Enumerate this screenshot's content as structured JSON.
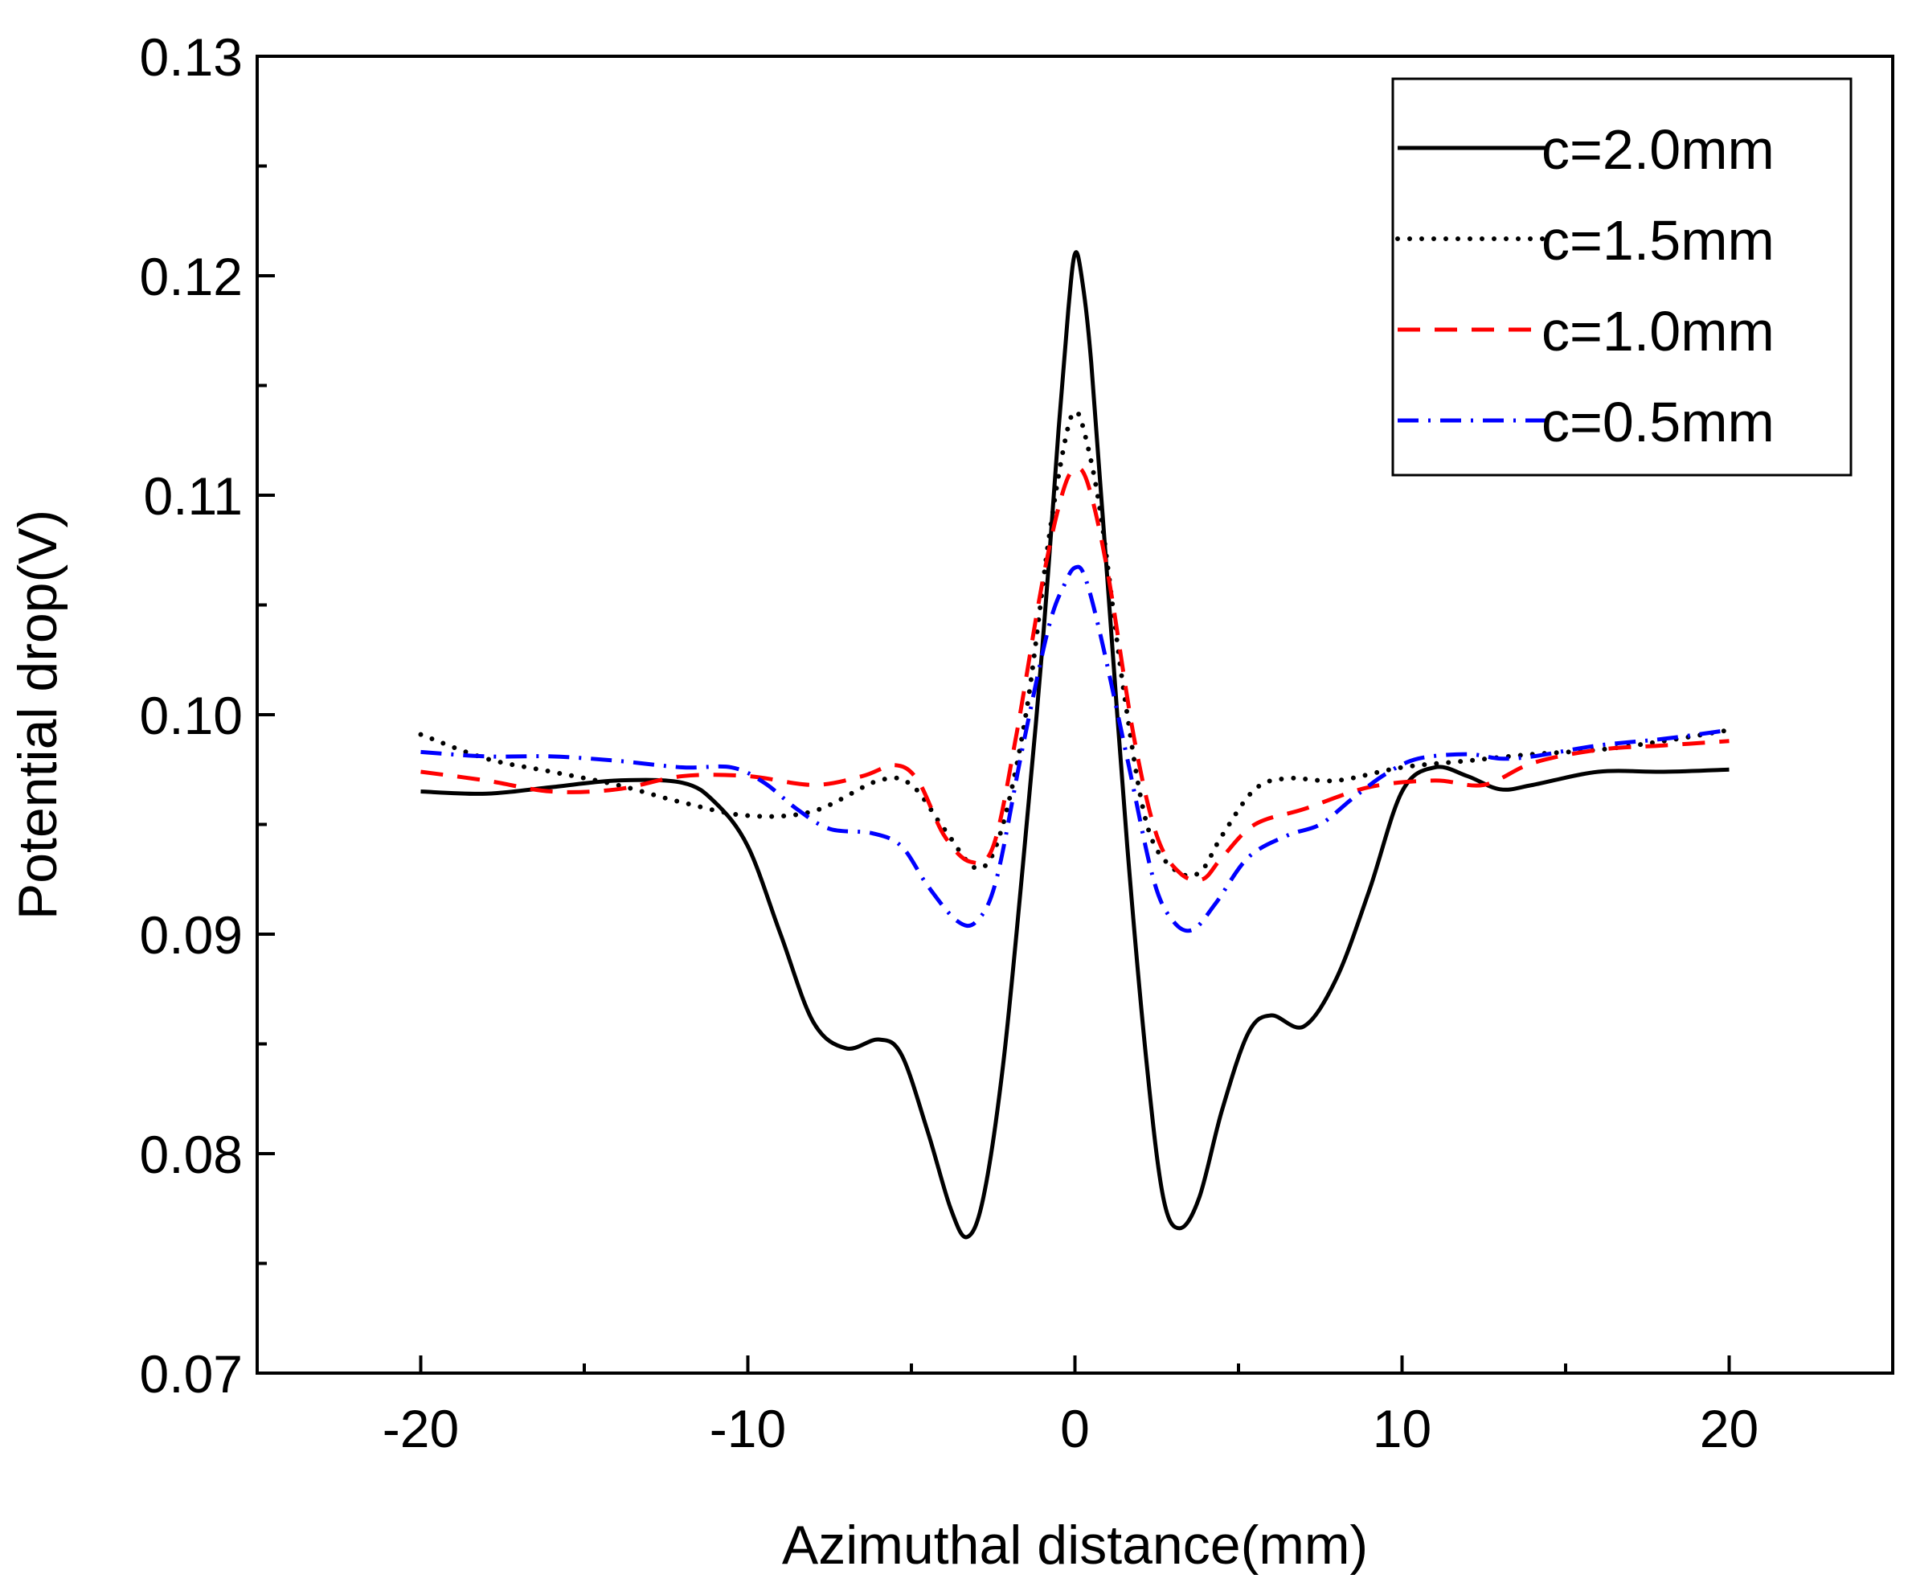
{
  "chart_data": {
    "type": "line",
    "title": "",
    "xlabel": "Azimuthal distance(mm)",
    "ylabel": "Potential drop(V)",
    "xlim": [
      -25,
      25
    ],
    "ylim": [
      0.07,
      0.13
    ],
    "x_ticks": [
      -20,
      -10,
      0,
      10,
      20
    ],
    "x_tick_labels": [
      "-20",
      "-10",
      "0",
      "10",
      "20"
    ],
    "y_ticks": [
      0.07,
      0.08,
      0.09,
      0.1,
      0.11,
      0.12,
      0.13
    ],
    "y_tick_labels": [
      "0.07",
      "0.08",
      "0.09",
      "0.10",
      "0.11",
      "0.12",
      "0.13"
    ],
    "grid": false,
    "legend_position": "top-right",
    "series": [
      {
        "name": "c=2.0mm",
        "color": "#000000",
        "line_style": "solid",
        "points": [
          [
            -20,
            0.0965
          ],
          [
            -18,
            0.0964
          ],
          [
            -16,
            0.0967
          ],
          [
            -14,
            0.097
          ],
          [
            -12,
            0.0969
          ],
          [
            -11,
            0.096
          ],
          [
            -10,
            0.094
          ],
          [
            -9,
            0.09
          ],
          [
            -8,
            0.086
          ],
          [
            -7,
            0.0848
          ],
          [
            -6,
            0.0852
          ],
          [
            -5.3,
            0.0845
          ],
          [
            -4.5,
            0.081
          ],
          [
            -3.8,
            0.0775
          ],
          [
            -3.3,
            0.0762
          ],
          [
            -2.8,
            0.078
          ],
          [
            -2.2,
            0.084
          ],
          [
            -1.6,
            0.093
          ],
          [
            -1.0,
            0.103
          ],
          [
            -0.5,
            0.113
          ],
          [
            -0.2,
            0.1185
          ],
          [
            0,
            0.121
          ],
          [
            0.2,
            0.12
          ],
          [
            0.5,
            0.116
          ],
          [
            1.0,
            0.106
          ],
          [
            1.6,
            0.094
          ],
          [
            2.2,
            0.084
          ],
          [
            2.7,
            0.078
          ],
          [
            3.2,
            0.0766
          ],
          [
            3.8,
            0.078
          ],
          [
            4.5,
            0.082
          ],
          [
            5.3,
            0.0855
          ],
          [
            6,
            0.0863
          ],
          [
            7,
            0.0858
          ],
          [
            8,
            0.088
          ],
          [
            9,
            0.092
          ],
          [
            10,
            0.0965
          ],
          [
            11,
            0.0976
          ],
          [
            12,
            0.0972
          ],
          [
            13,
            0.0966
          ],
          [
            14,
            0.0968
          ],
          [
            16,
            0.0974
          ],
          [
            18,
            0.0974
          ],
          [
            20,
            0.0975
          ]
        ]
      },
      {
        "name": "c=1.5mm",
        "color": "#000000",
        "line_style": "dotted",
        "points": [
          [
            -20,
            0.0991
          ],
          [
            -18,
            0.098
          ],
          [
            -16,
            0.0974
          ],
          [
            -14,
            0.0968
          ],
          [
            -12,
            0.096
          ],
          [
            -10,
            0.0954
          ],
          [
            -8,
            0.0956
          ],
          [
            -6,
            0.097
          ],
          [
            -5,
            0.0968
          ],
          [
            -4,
            0.0948
          ],
          [
            -3,
            0.093
          ],
          [
            -2.3,
            0.0945
          ],
          [
            -1.5,
            0.1
          ],
          [
            -0.8,
            0.108
          ],
          [
            -0.3,
            0.1125
          ],
          [
            0,
            0.1138
          ],
          [
            0.3,
            0.1128
          ],
          [
            0.8,
            0.109
          ],
          [
            1.5,
            0.101
          ],
          [
            2.2,
            0.095
          ],
          [
            3,
            0.093
          ],
          [
            3.8,
            0.0928
          ],
          [
            4.5,
            0.0945
          ],
          [
            5.5,
            0.0966
          ],
          [
            6.5,
            0.0971
          ],
          [
            8,
            0.097
          ],
          [
            10,
            0.0976
          ],
          [
            12,
            0.0979
          ],
          [
            14,
            0.0982
          ],
          [
            16,
            0.0984
          ],
          [
            18,
            0.0988
          ],
          [
            20,
            0.0993
          ]
        ]
      },
      {
        "name": "c=1.0mm",
        "color": "#ff0000",
        "line_style": "dashed",
        "points": [
          [
            -20,
            0.0974
          ],
          [
            -18,
            0.097
          ],
          [
            -16,
            0.0965
          ],
          [
            -14,
            0.0966
          ],
          [
            -12,
            0.0972
          ],
          [
            -10,
            0.0972
          ],
          [
            -8,
            0.0968
          ],
          [
            -6.5,
            0.0972
          ],
          [
            -5.5,
            0.0977
          ],
          [
            -4.8,
            0.097
          ],
          [
            -4,
            0.0945
          ],
          [
            -3.2,
            0.0933
          ],
          [
            -2.5,
            0.094
          ],
          [
            -1.8,
            0.099
          ],
          [
            -1.0,
            0.106
          ],
          [
            -0.4,
            0.11
          ],
          [
            0,
            0.1112
          ],
          [
            0.4,
            0.1105
          ],
          [
            1.0,
            0.1065
          ],
          [
            1.8,
            0.099
          ],
          [
            2.5,
            0.0945
          ],
          [
            3.2,
            0.0928
          ],
          [
            3.9,
            0.0925
          ],
          [
            4.5,
            0.0935
          ],
          [
            5.5,
            0.095
          ],
          [
            7,
            0.0957
          ],
          [
            9,
            0.0967
          ],
          [
            11,
            0.097
          ],
          [
            12.5,
            0.0968
          ],
          [
            14,
            0.0978
          ],
          [
            16,
            0.0984
          ],
          [
            18,
            0.0986
          ],
          [
            20,
            0.0988
          ]
        ]
      },
      {
        "name": "c=0.5mm",
        "color": "#0000ff",
        "line_style": "dashdot",
        "points": [
          [
            -20,
            0.0983
          ],
          [
            -18,
            0.0981
          ],
          [
            -16,
            0.0981
          ],
          [
            -14,
            0.0979
          ],
          [
            -12,
            0.0976
          ],
          [
            -10.5,
            0.0976
          ],
          [
            -9.5,
            0.0969
          ],
          [
            -8.5,
            0.0957
          ],
          [
            -7.5,
            0.0948
          ],
          [
            -6.2,
            0.0946
          ],
          [
            -5.3,
            0.094
          ],
          [
            -4.5,
            0.0922
          ],
          [
            -3.6,
            0.0906
          ],
          [
            -3.0,
            0.0906
          ],
          [
            -2.4,
            0.0925
          ],
          [
            -1.6,
            0.0985
          ],
          [
            -0.8,
            0.104
          ],
          [
            -0.3,
            0.106
          ],
          [
            0,
            0.1067
          ],
          [
            0.3,
            0.1063
          ],
          [
            0.8,
            0.1035
          ],
          [
            1.6,
            0.098
          ],
          [
            2.4,
            0.0925
          ],
          [
            3.0,
            0.0906
          ],
          [
            3.6,
            0.0902
          ],
          [
            4.3,
            0.0914
          ],
          [
            5.3,
            0.0935
          ],
          [
            6.5,
            0.0945
          ],
          [
            7.5,
            0.095
          ],
          [
            8.5,
            0.0962
          ],
          [
            9.5,
            0.0973
          ],
          [
            10.5,
            0.098
          ],
          [
            12,
            0.0982
          ],
          [
            13,
            0.098
          ],
          [
            14,
            0.0981
          ],
          [
            16,
            0.0986
          ],
          [
            18,
            0.0989
          ],
          [
            20,
            0.0993
          ]
        ]
      }
    ]
  }
}
